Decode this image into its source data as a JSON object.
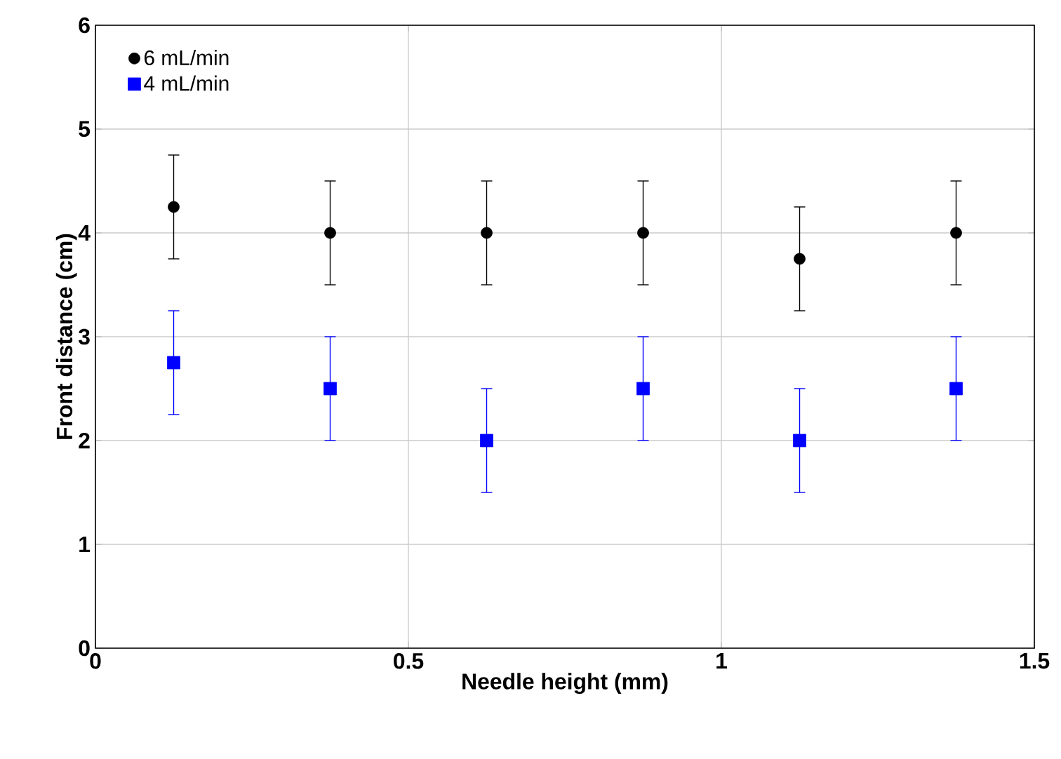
{
  "chart_data": {
    "type": "scatter",
    "xlabel": "Needle height  (mm)",
    "ylabel": "Front distance (cm)",
    "xlim": [
      0,
      1.5
    ],
    "ylim": [
      0,
      6
    ],
    "xticks": [
      0,
      0.5,
      1,
      1.5
    ],
    "yticks": [
      0,
      1,
      2,
      3,
      4,
      5,
      6
    ],
    "grid": true,
    "legend": "top left",
    "series": [
      {
        "name": "6 mL/min",
        "color": "#000000",
        "marker": "circle",
        "x": [
          0.125,
          0.375,
          0.625,
          0.875,
          1.125,
          1.375
        ],
        "values": [
          4.25,
          4,
          4,
          4,
          3.75,
          4
        ],
        "errors": [
          0.5,
          0.5,
          0.5,
          0.5,
          0.5,
          0.5
        ]
      },
      {
        "name": "4 mL/min",
        "color": "#0000ff",
        "marker": "square",
        "x": [
          0.125,
          0.375,
          0.625,
          0.875,
          1.125,
          1.375
        ],
        "values": [
          2.75,
          2.5,
          2,
          2.5,
          2,
          2.5
        ],
        "errors": [
          0.5,
          0.5,
          0.5,
          0.5,
          0.5,
          0.5
        ]
      }
    ]
  }
}
